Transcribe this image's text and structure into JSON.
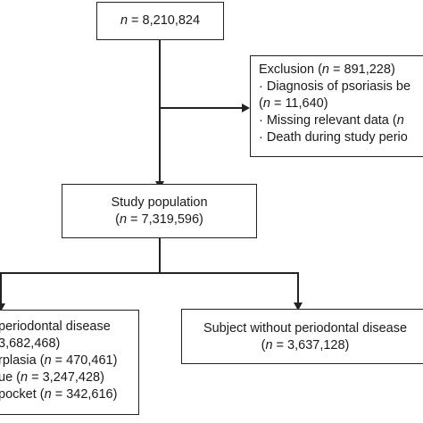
{
  "total": {
    "n_label": "n",
    "value": " = 8,210,824"
  },
  "exclusion": {
    "title_prefix": "Exclusion (",
    "title_n": "n",
    "title_value": " = 891,228)",
    "item1_line1": "· Diagnosis of psoriasis be",
    "item1_line2_open": "(",
    "item1_line2_n": "n",
    "item1_line2_value": " = 11,640)",
    "item2_text": "· Missing relevant data (",
    "item2_n": "n",
    "item3_text": "· Death during study perio"
  },
  "study": {
    "title": "Study population",
    "count_open": "(",
    "count_n": "n",
    "count_value": " = 7,319,596)"
  },
  "with_pd": {
    "line1": "periodontal disease",
    "line2_value": "3,682,468)",
    "line3_text": "rplasia (",
    "line3_n": "n",
    "line3_value": " = 470,461)",
    "line4_text": "ue (",
    "line4_n": "n",
    "line4_value": " = 3,247,428)",
    "line5_text": "pocket (",
    "line5_n": "n",
    "line5_value": " = 342,616)"
  },
  "without_pd": {
    "title": "Subject without periodontal disease",
    "count_open": "(",
    "count_n": "n",
    "count_value": " = 3,637,128)"
  }
}
